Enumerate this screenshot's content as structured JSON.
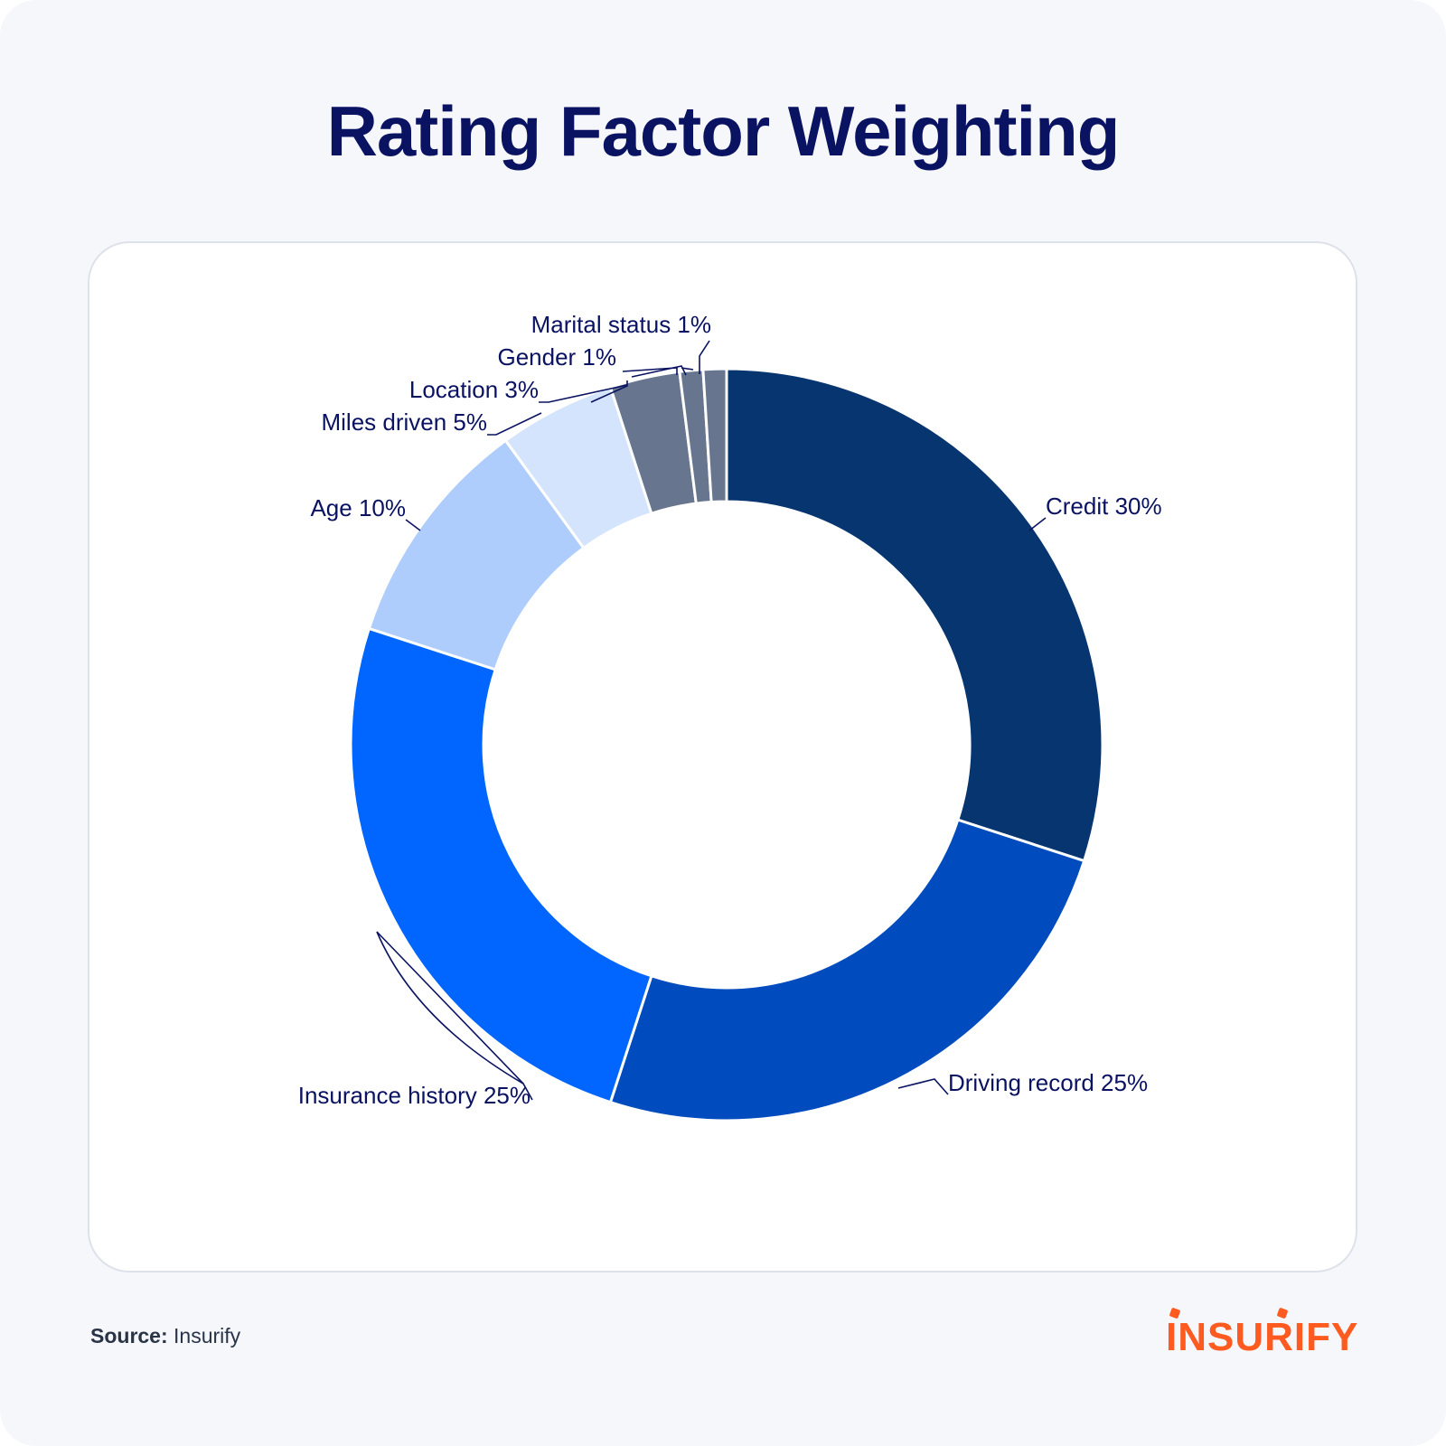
{
  "title": "Rating Factor Weighting",
  "source": {
    "label": "Source:",
    "value": "Insurify"
  },
  "logo": {
    "text": "INSURIFY",
    "color": "#ff5a1f"
  },
  "chart_data": {
    "type": "pie",
    "donut": true,
    "slices": [
      {
        "label": "Credit 30%",
        "value": 30,
        "color": "#07356f"
      },
      {
        "label": "Driving record 25%",
        "value": 25,
        "color": "#004bbd"
      },
      {
        "label": "Insurance history 25%",
        "value": 25,
        "color": "#0066ff"
      },
      {
        "label": "Age 10%",
        "value": 10,
        "color": "#aecdfd"
      },
      {
        "label": "Miles driven 5%",
        "value": 5,
        "color": "#d4e4fd"
      },
      {
        "label": "Location 3%",
        "value": 3,
        "color": "#67768e"
      },
      {
        "label": "Gender 1%",
        "value": 1,
        "color": "#67768e"
      },
      {
        "label": "Marital status 1%",
        "value": 1,
        "color": "#67768e"
      }
    ]
  }
}
